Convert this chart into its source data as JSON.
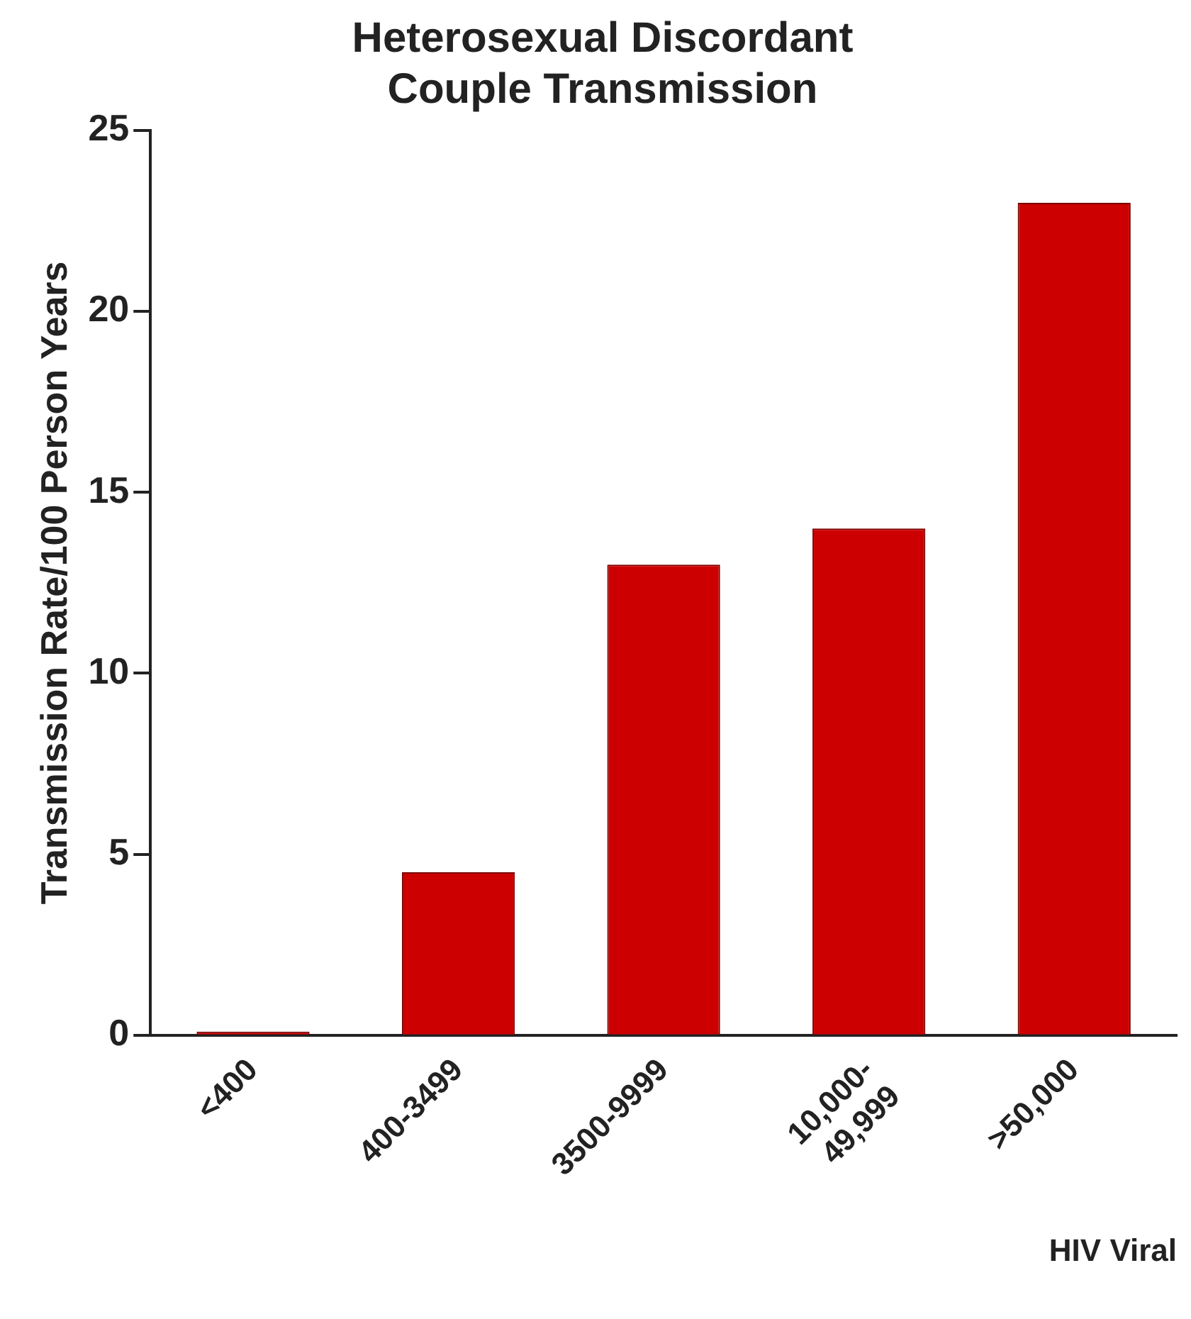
{
  "chart_data": {
    "type": "bar",
    "title": "Heterosexual Discordant\nCouple Transmission",
    "xlabel": "HIV Viral",
    "ylabel": "Transmission Rate/100 Person Years",
    "categories": [
      "<400",
      "400-3499",
      "3500-9999",
      "10,000-\n49,999",
      ">50,000"
    ],
    "values": [
      0.1,
      4.5,
      13,
      14,
      23
    ],
    "color": "#cc0000",
    "ylim": [
      0,
      25
    ],
    "yticks": [
      0,
      5,
      10,
      15,
      20,
      25
    ],
    "grid": false,
    "legend": false
  }
}
